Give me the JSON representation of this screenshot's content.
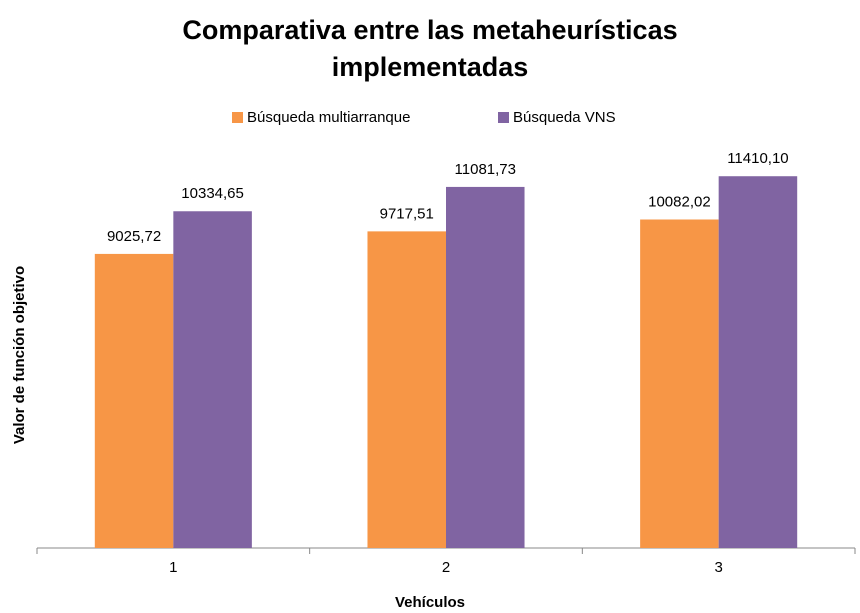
{
  "chart_data": {
    "type": "bar",
    "title": "Comparativa entre las metaheurísticas implementadas",
    "x_label": "Vehículos",
    "y_label": "Valor de función objetivo",
    "categories": [
      "1",
      "2",
      "3"
    ],
    "series": [
      {
        "name": "Búsqueda multiarranque",
        "color": "#f79646",
        "values": [
          9025.72,
          9717.51,
          10082.02
        ],
        "value_labels": [
          "9025,72",
          "9717,51",
          "10082,02"
        ]
      },
      {
        "name": "Búsqueda VNS",
        "color": "#8064a2",
        "values": [
          10334.65,
          11081.73,
          11410.1
        ],
        "value_labels": [
          "10334,65",
          "11081,73",
          "11410,10"
        ]
      }
    ],
    "ylim": [
      0,
      12000
    ],
    "legend": "top"
  }
}
